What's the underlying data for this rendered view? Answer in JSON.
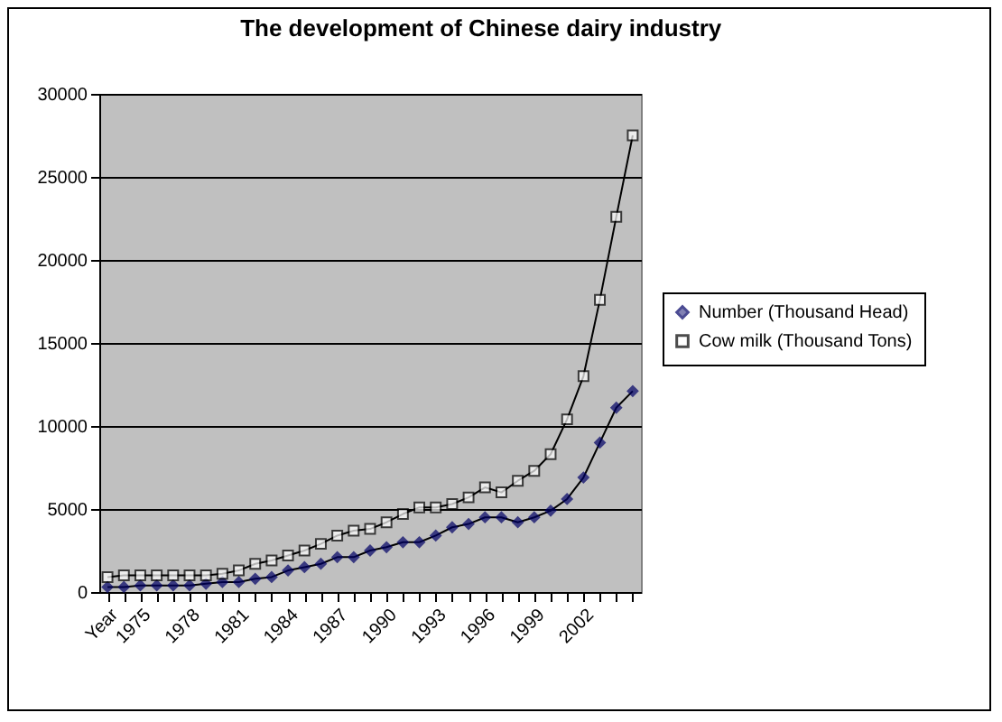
{
  "chart_data": {
    "type": "line",
    "title": "The development of Chinese dairy industry",
    "categories": [
      "Year",
      null,
      "1975",
      null,
      null,
      "1978",
      null,
      null,
      "1981",
      null,
      null,
      "1984",
      null,
      null,
      "1987",
      null,
      null,
      "1990",
      null,
      null,
      "1993",
      null,
      null,
      "1996",
      null,
      null,
      "1999",
      null,
      null,
      "2002",
      null,
      null,
      null
    ],
    "series": [
      {
        "name": "Number (Thousand Head)",
        "color": "#000066",
        "marker": "diamond",
        "values": [
          300,
          300,
          400,
          400,
          400,
          400,
          500,
          600,
          600,
          800,
          900,
          1300,
          1500,
          1700,
          2100,
          2100,
          2500,
          2700,
          3000,
          3000,
          3400,
          3900,
          4100,
          4500,
          4500,
          4200,
          4500,
          4900,
          5600,
          6900,
          9000,
          11100,
          12100
        ]
      },
      {
        "name": "Cow milk (Thousand Tons)",
        "color": "#ffffff",
        "marker": "square",
        "values": [
          900,
          1000,
          1000,
          1000,
          1000,
          1000,
          1000,
          1100,
          1300,
          1700,
          1900,
          2200,
          2500,
          2900,
          3400,
          3700,
          3800,
          4200,
          4700,
          5100,
          5100,
          5300,
          5700,
          6300,
          6000,
          6700,
          7300,
          8300,
          10400,
          13000,
          17600,
          22600,
          27500
        ]
      }
    ],
    "ylim": [
      0,
      30000
    ],
    "yticks": [
      0,
      5000,
      10000,
      15000,
      20000,
      25000,
      30000
    ],
    "grid": "y",
    "legend": "right",
    "line_style": "solid"
  }
}
